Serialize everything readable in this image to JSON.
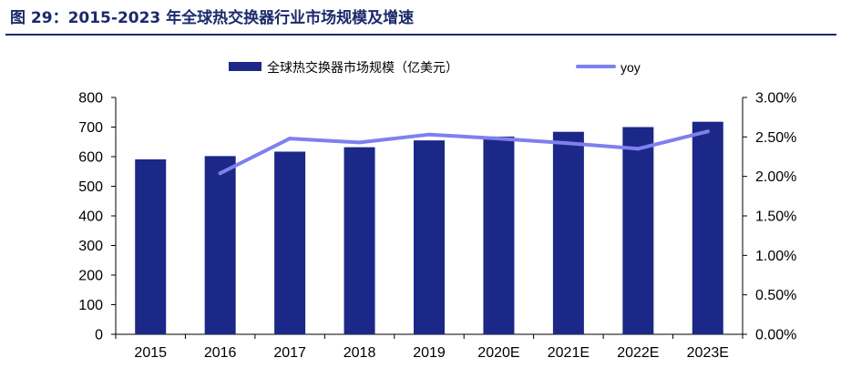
{
  "figure": {
    "title": "图 29：2015-2023 年全球热交换器行业市场规模及增速"
  },
  "colors": {
    "bar": "#1b2888",
    "line": "#7f80ee",
    "title": "#1b2a6b",
    "axis": "#000000"
  },
  "chart_data": {
    "type": "bar",
    "categories": [
      "2015",
      "2016",
      "2017",
      "2018",
      "2019",
      "2020E",
      "2021E",
      "2022E",
      "2023E"
    ],
    "series": [
      {
        "name": "全球热交换器市场规模（亿美元）",
        "type": "bar",
        "axis": "left",
        "values": [
          591,
          602,
          617,
          632,
          655,
          668,
          684,
          700,
          718
        ]
      },
      {
        "name": "yoy",
        "type": "line",
        "axis": "right",
        "values": [
          null,
          0.0204,
          0.0248,
          0.0243,
          0.0253,
          0.0248,
          0.0242,
          0.0235,
          0.0257
        ]
      }
    ],
    "y_left": {
      "min": 0,
      "max": 800,
      "ticks": [
        "0",
        "100",
        "200",
        "300",
        "400",
        "500",
        "600",
        "700",
        "800"
      ]
    },
    "y_right": {
      "min": 0,
      "max": 0.03,
      "ticks": [
        "0.00%",
        "0.50%",
        "1.00%",
        "1.50%",
        "2.00%",
        "2.50%",
        "3.00%"
      ]
    },
    "grid": false,
    "legend_position": "top"
  }
}
